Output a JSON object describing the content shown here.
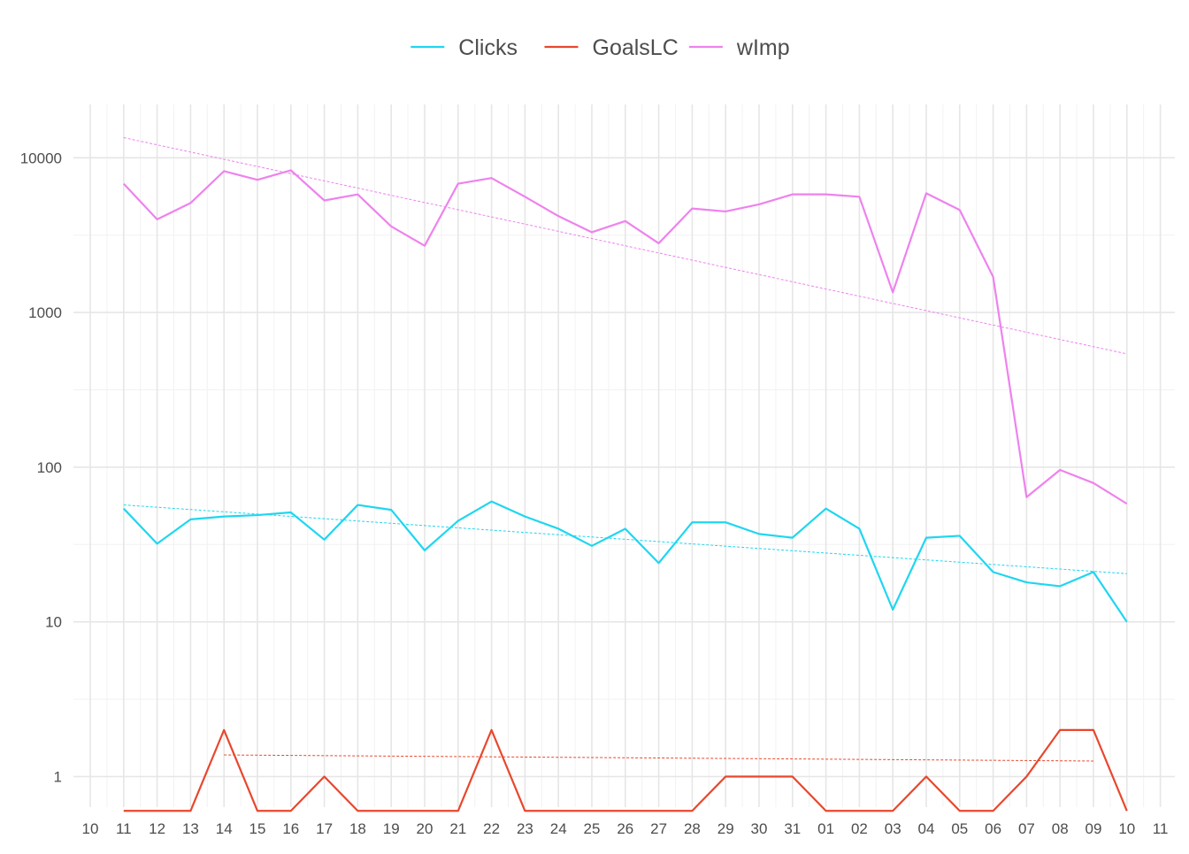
{
  "chart_data": {
    "type": "line",
    "y_scale": "log10",
    "ylim": [
      0.6,
      20000
    ],
    "grid": true,
    "legend_position": "top",
    "x_ticks": [
      "10",
      "11",
      "12",
      "13",
      "14",
      "15",
      "16",
      "17",
      "18",
      "19",
      "20",
      "21",
      "22",
      "23",
      "24",
      "25",
      "26",
      "27",
      "28",
      "29",
      "30",
      "31",
      "01",
      "02",
      "03",
      "04",
      "05",
      "06",
      "07",
      "08",
      "09",
      "10",
      "11"
    ],
    "y_ticks": [
      {
        "value": 1,
        "label": "1"
      },
      {
        "value": 10,
        "label": "10"
      },
      {
        "value": 100,
        "label": "100"
      },
      {
        "value": 1000,
        "label": "1000"
      },
      {
        "value": 10000,
        "label": "10000"
      }
    ],
    "x": [
      "11",
      "12",
      "13",
      "14",
      "15",
      "16",
      "17",
      "18",
      "19",
      "20",
      "21",
      "22",
      "23",
      "24",
      "25",
      "26",
      "27",
      "28",
      "29",
      "30",
      "31",
      "01",
      "02",
      "03",
      "04",
      "05",
      "06",
      "07",
      "08",
      "09",
      "10"
    ],
    "series": [
      {
        "name": "Clicks",
        "color": "#1FD6F0",
        "values": [
          54,
          32,
          46,
          48,
          49,
          51,
          34,
          57,
          53,
          29,
          45,
          60,
          48,
          40,
          31,
          40,
          24,
          44,
          44,
          37,
          35,
          54,
          40,
          12,
          35,
          36,
          21,
          18,
          17,
          21,
          10
        ],
        "trend": {
          "start": 57,
          "end": 20.5
        }
      },
      {
        "name": "GoalsLC",
        "color": "#E8472C",
        "values": [
          0.6,
          0.6,
          0.6,
          2,
          0.6,
          0.6,
          1,
          0.6,
          0.6,
          0.6,
          0.6,
          2,
          0.6,
          0.6,
          0.6,
          0.6,
          0.6,
          0.6,
          1,
          1,
          1,
          0.6,
          0.6,
          0.6,
          1,
          0.6,
          0.6,
          1,
          2,
          2,
          0.6
        ],
        "trend": {
          "start_index": 3,
          "end_index": 29,
          "start": 1.38,
          "end": 1.26
        }
      },
      {
        "name": "wImp",
        "color": "#EE82EE",
        "values": [
          6800,
          4000,
          5100,
          8200,
          7200,
          8300,
          5300,
          5800,
          3600,
          2700,
          6800,
          7400,
          5600,
          4200,
          3300,
          3900,
          2800,
          4700,
          4500,
          5000,
          5800,
          5800,
          5600,
          1350,
          5900,
          4600,
          1700,
          64,
          96,
          79,
          58
        ],
        "trend": {
          "start": 13500,
          "end": 540
        }
      }
    ]
  }
}
